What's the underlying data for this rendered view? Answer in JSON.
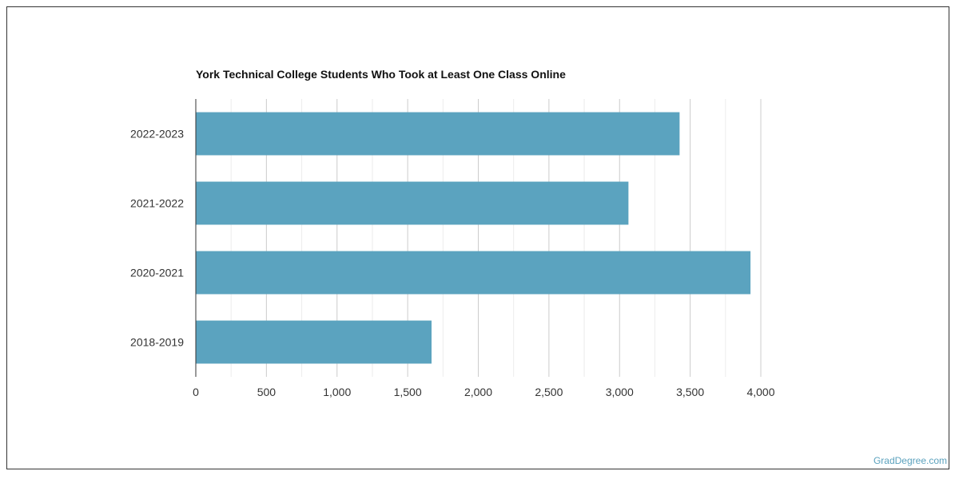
{
  "chart_data": {
    "type": "bar",
    "orientation": "horizontal",
    "title": "York Technical College Students Who Took at Least One Class Online",
    "categories": [
      "2022-2023",
      "2021-2022",
      "2020-2021",
      "2018-2019"
    ],
    "values": [
      3425,
      3063,
      3927,
      1669
    ],
    "xlabel": "",
    "ylabel": "",
    "xlim": [
      0,
      4000
    ],
    "x_ticks": [
      0,
      500,
      1000,
      1500,
      2000,
      2500,
      3000,
      3500,
      4000
    ],
    "x_tick_labels": [
      "0",
      "500",
      "1,000",
      "1,500",
      "2,000",
      "2,500",
      "3,000",
      "3,500",
      "4,000"
    ],
    "grid": true,
    "bar_color": "#5ba3bf"
  },
  "watermark": "GradDegree.com"
}
